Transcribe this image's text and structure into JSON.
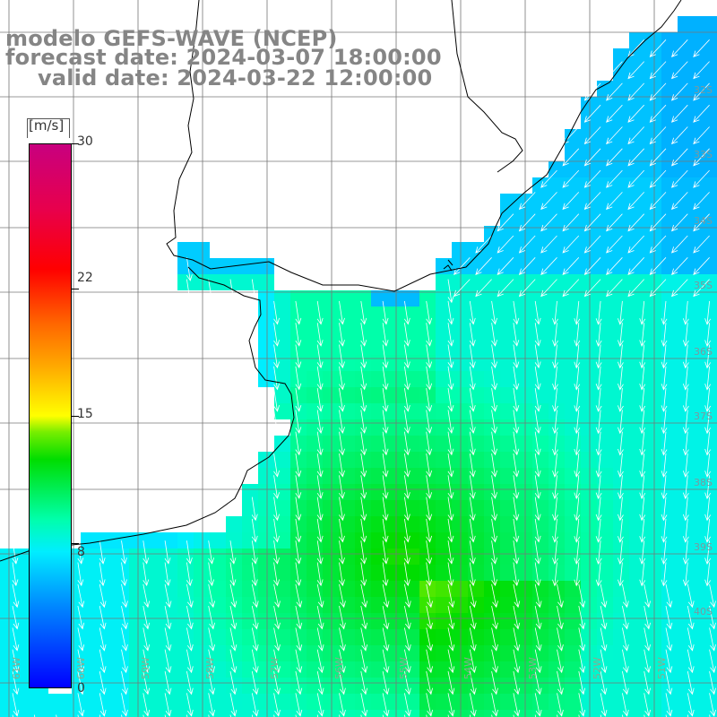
{
  "title": {
    "line1": "modelo GEFS-WAVE (NCEP)",
    "line2": "forecast date: 2024-03-07 18:00:00",
    "line3": "valid date: 2024-03-22 12:00:00"
  },
  "colorbar": {
    "unit": "[m/s]",
    "ticks": [
      "30",
      "22",
      "15",
      "8",
      "0"
    ],
    "tick_values": [
      30,
      22,
      15,
      8,
      0
    ],
    "range": [
      0,
      30
    ]
  },
  "grid": {
    "lat_labels": [
      "32S",
      "33S",
      "34S",
      "35S",
      "36S",
      "37S",
      "38S",
      "39S",
      "40S"
    ],
    "lon_labels": [
      "61W",
      "60W",
      "59W",
      "58W",
      "57W",
      "56W",
      "55W",
      "54W",
      "53W",
      "52W",
      "51W"
    ]
  },
  "colors": {
    "land": "#ffffff",
    "coast": "#000000",
    "grid": "#777777",
    "arrows": "#ffffff"
  }
}
